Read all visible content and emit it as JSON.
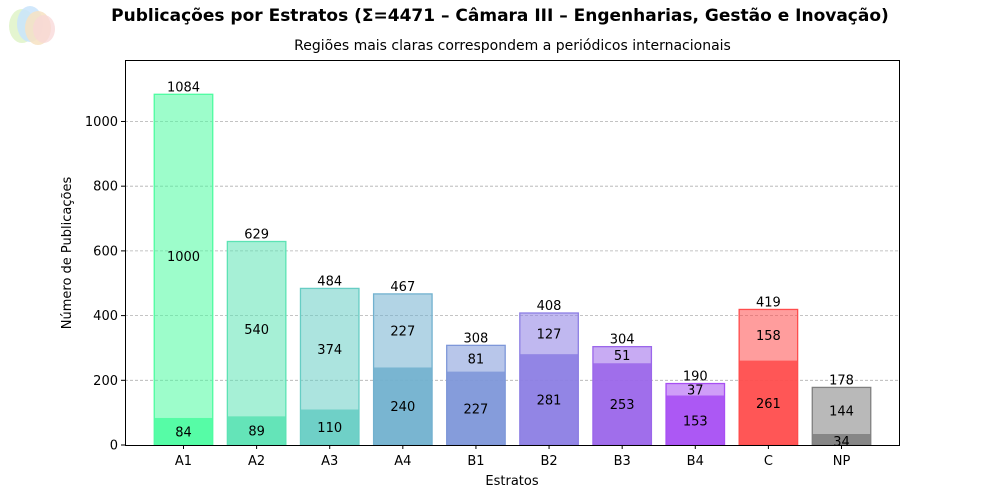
{
  "chart_data": {
    "type": "bar",
    "title": "Publicações por Estratos (Σ=4471 – Câmara III – Engenharias, Gestão e Inovação)",
    "subtitle": "Regiões mais claras correspondem a periódicos internacionais",
    "xlabel": "Estratos",
    "ylabel": "Número de Publicações",
    "ylim": [
      0,
      1190
    ],
    "yticks": [
      0,
      200,
      400,
      600,
      800,
      1000
    ],
    "grid": "horizontal dashed",
    "categories": [
      "A1",
      "A2",
      "A3",
      "A4",
      "B1",
      "B2",
      "B3",
      "B4",
      "C",
      "NP"
    ],
    "totals": [
      1084,
      629,
      484,
      467,
      308,
      408,
      304,
      190,
      419,
      178
    ],
    "series": [
      {
        "values": [
          84,
          89,
          110,
          240,
          227,
          281,
          253,
          153,
          261,
          34
        ]
      },
      {
        "values": [
          1000,
          540,
          374,
          227,
          81,
          127,
          51,
          37,
          158,
          144
        ]
      }
    ],
    "colors": [
      "#4dfca1",
      "#5ce3b4",
      "#67cdc4",
      "#72b1cf",
      "#7e97d9",
      "#8c7ee4",
      "#9b66ea",
      "#a84ff3",
      "#ff4d4d",
      "#808080"
    ]
  }
}
